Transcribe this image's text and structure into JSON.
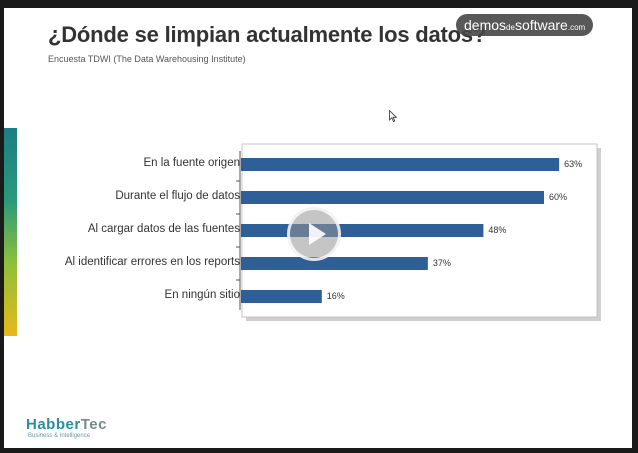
{
  "slide": {
    "title": "¿Dónde se limpian actualmente los datos?",
    "subtitle": "Encuesta TDWI (The Data Warehousing Institute)"
  },
  "watermark": {
    "part1": "demos",
    "part2": "de",
    "part3": "software",
    "part4": ".com"
  },
  "player": {
    "play_icon": "play-icon"
  },
  "logo": {
    "brand_part1": "Habber",
    "brand_part2": "Tec",
    "tagline": "Business & Intelligence"
  },
  "colors": {
    "bar": "#2e5f96",
    "frame_shadow": "#d0d0d0",
    "accent_teal": "#1d7d86",
    "accent_yellow": "#e8b81a"
  },
  "chart_data": {
    "type": "bar",
    "orientation": "horizontal",
    "title": "",
    "xlabel": "",
    "ylabel": "",
    "xlim": [
      0,
      100
    ],
    "grid": false,
    "categories": [
      "En la fuente origen",
      "Durante el flujo de datos",
      "Al cargar datos de las fuentes",
      "Al identificar  errores en los reports",
      "En ningún sitio"
    ],
    "values": [
      63,
      60,
      48,
      37,
      16
    ],
    "value_labels": [
      "63%",
      "60%",
      "48%",
      "37%",
      "16%"
    ]
  }
}
